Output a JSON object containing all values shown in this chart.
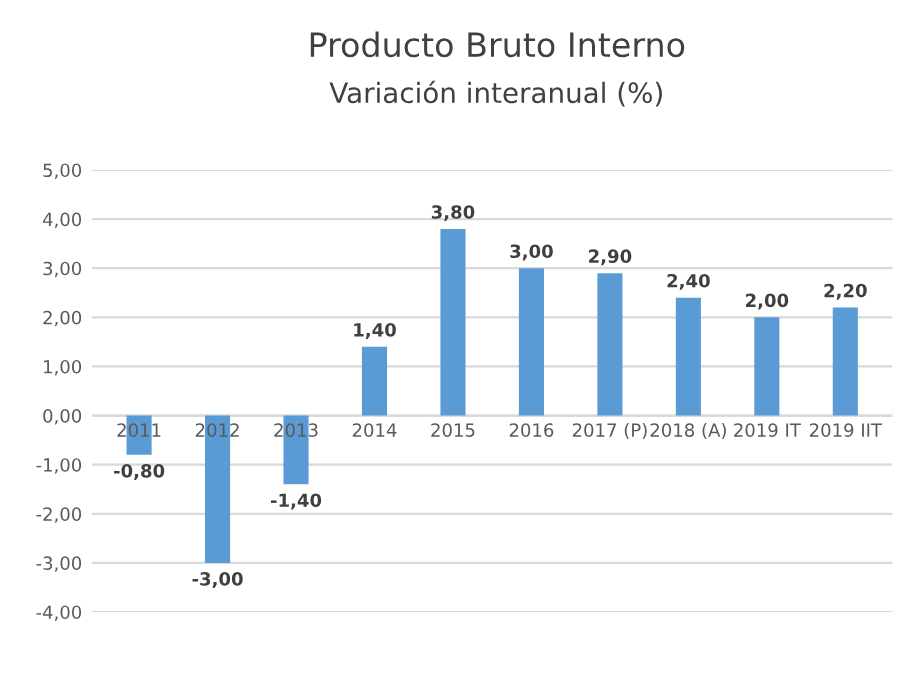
{
  "chart_data": {
    "type": "bar",
    "title": "Producto Bruto Interno",
    "subtitle": "Variación interanual (%)",
    "categories": [
      "2011",
      "2012",
      "2013",
      "2014",
      "2015",
      "2016",
      "2017 (P)",
      "2018 (A)",
      "2019 IT",
      "2019 IIT"
    ],
    "values": [
      -0.8,
      -3.0,
      -1.4,
      1.4,
      3.8,
      3.0,
      2.9,
      2.4,
      2.0,
      2.2
    ],
    "value_labels": [
      "-0,80",
      "-3,00",
      "-1,40",
      "1,40",
      "3,80",
      "3,00",
      "2,90",
      "2,40",
      "2,00",
      "2,20"
    ],
    "color": "#5b9bd5",
    "ylim": [
      -4,
      5
    ],
    "yticks": [
      {
        "value": -4,
        "label": "-4,00"
      },
      {
        "value": -3,
        "label": "-3,00"
      },
      {
        "value": -2,
        "label": "-2,00"
      },
      {
        "value": -1,
        "label": "-1,00"
      },
      {
        "value": 0,
        "label": "0,00"
      },
      {
        "value": 1,
        "label": "1,00"
      },
      {
        "value": 2,
        "label": "2,00"
      },
      {
        "value": 3,
        "label": "3,00"
      },
      {
        "value": 4,
        "label": "4,00"
      },
      {
        "value": 5,
        "label": "5,00"
      }
    ],
    "grid": "y"
  }
}
